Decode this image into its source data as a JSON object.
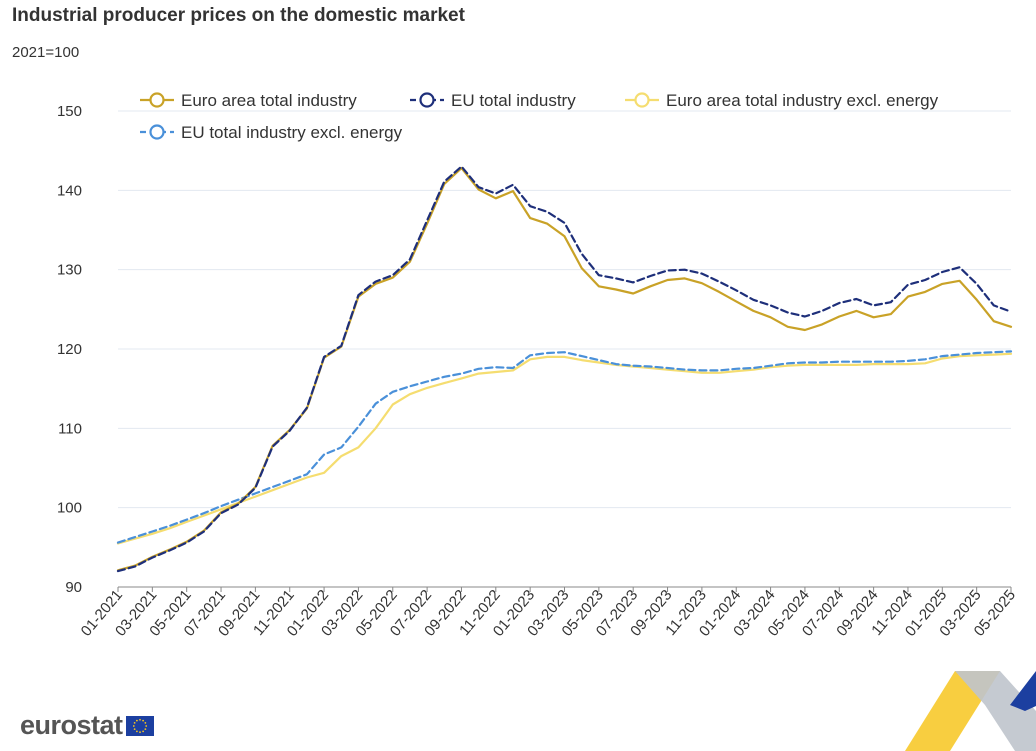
{
  "header": {
    "title": "Industrial producer prices on the domestic market",
    "subtitle": "2021=100"
  },
  "logo": {
    "text": "eurostat",
    "flag": "eu-flag-icon"
  },
  "colors": {
    "euro_area_total": "#C9A227",
    "eu_total": "#1E2F7A",
    "euro_area_excl_energy": "#F5DD70",
    "eu_excl_energy": "#4A90D9",
    "grid": "#E3E8F0",
    "axis": "#333333",
    "accent_yellow": "#F7C51E",
    "accent_blue": "#1C3FA0"
  },
  "chart_data": {
    "type": "line",
    "title": "Industrial producer prices on the domestic market",
    "subtitle": "2021=100",
    "xlabel": "",
    "ylabel": "",
    "ylim": [
      90,
      150
    ],
    "yticks": [
      90,
      100,
      110,
      120,
      130,
      140,
      150
    ],
    "grid": true,
    "legend_position": "top",
    "xtick_labels": [
      "01-2021",
      "03-2021",
      "05-2021",
      "07-2021",
      "09-2021",
      "11-2021",
      "01-2022",
      "03-2022",
      "05-2022",
      "07-2022",
      "09-2022",
      "11-2022",
      "01-2023",
      "03-2023",
      "05-2023",
      "07-2023",
      "09-2023",
      "11-2023",
      "01-2024",
      "03-2024",
      "05-2024",
      "07-2024",
      "09-2024",
      "11-2024",
      "01-2025",
      "03-2025",
      "05-2025"
    ],
    "x": [
      "01-2021",
      "02-2021",
      "03-2021",
      "04-2021",
      "05-2021",
      "06-2021",
      "07-2021",
      "08-2021",
      "09-2021",
      "10-2021",
      "11-2021",
      "12-2021",
      "01-2022",
      "02-2022",
      "03-2022",
      "04-2022",
      "05-2022",
      "06-2022",
      "07-2022",
      "08-2022",
      "09-2022",
      "10-2022",
      "11-2022",
      "12-2022",
      "01-2023",
      "02-2023",
      "03-2023",
      "04-2023",
      "05-2023",
      "06-2023",
      "07-2023",
      "08-2023",
      "09-2023",
      "10-2023",
      "11-2023",
      "12-2023",
      "01-2024",
      "02-2024",
      "03-2024",
      "04-2024",
      "05-2024",
      "06-2024",
      "07-2024",
      "08-2024",
      "09-2024",
      "10-2024",
      "11-2024",
      "12-2024",
      "01-2025",
      "02-2025",
      "03-2025",
      "04-2025",
      "05-2025"
    ],
    "series": [
      {
        "name": "Euro area total industry",
        "key": "euro_area_total",
        "dash": "solid",
        "values": [
          92.1,
          92.7,
          93.8,
          94.7,
          95.7,
          97.1,
          99.4,
          100.5,
          102.6,
          107.8,
          109.8,
          112.5,
          118.9,
          120.3,
          126.6,
          128.2,
          129.0,
          131.0,
          135.8,
          140.8,
          142.8,
          140.1,
          139.0,
          139.9,
          136.5,
          135.8,
          134.2,
          130.2,
          127.9,
          127.5,
          127.0,
          127.9,
          128.7,
          128.9,
          128.3,
          127.2,
          126.0,
          124.8,
          124.0,
          122.8,
          122.4,
          123.1,
          124.1,
          124.8,
          124.0,
          124.4,
          126.6,
          127.2,
          128.2,
          128.6,
          126.2,
          123.5,
          122.8
        ]
      },
      {
        "name": "EU total industry",
        "key": "eu_total",
        "dash": "dashed",
        "values": [
          92.0,
          92.6,
          93.7,
          94.6,
          95.6,
          97.0,
          99.3,
          100.4,
          102.5,
          107.7,
          109.7,
          112.6,
          119.0,
          120.4,
          126.8,
          128.5,
          129.3,
          131.3,
          136.2,
          141.1,
          143.0,
          140.4,
          139.6,
          140.7,
          138.0,
          137.3,
          135.9,
          132.0,
          129.3,
          128.9,
          128.4,
          129.2,
          129.9,
          130.0,
          129.5,
          128.5,
          127.4,
          126.2,
          125.5,
          124.6,
          124.1,
          124.8,
          125.8,
          126.3,
          125.5,
          125.9,
          128.1,
          128.7,
          129.7,
          130.3,
          128.2,
          125.5,
          124.7
        ]
      },
      {
        "name": "Euro area total industry excl. energy",
        "key": "euro_area_excl_energy",
        "dash": "solid",
        "values": [
          95.5,
          96.1,
          96.7,
          97.4,
          98.2,
          99.0,
          99.8,
          100.6,
          101.4,
          102.2,
          103.0,
          103.8,
          104.4,
          106.5,
          107.6,
          110.0,
          113.0,
          114.3,
          115.1,
          115.7,
          116.3,
          116.9,
          117.1,
          117.3,
          118.7,
          119.0,
          119.0,
          118.6,
          118.3,
          118.0,
          117.8,
          117.6,
          117.4,
          117.2,
          117.0,
          117.0,
          117.2,
          117.4,
          117.7,
          117.9,
          118.0,
          118.0,
          118.0,
          118.0,
          118.1,
          118.1,
          118.1,
          118.2,
          118.8,
          119.1,
          119.2,
          119.3,
          119.4
        ]
      },
      {
        "name": "EU total industry excl. energy",
        "key": "eu_excl_energy",
        "dash": "dashed",
        "values": [
          95.6,
          96.3,
          97.0,
          97.7,
          98.5,
          99.3,
          100.2,
          101.0,
          101.8,
          102.6,
          103.4,
          104.2,
          106.7,
          107.6,
          110.2,
          113.1,
          114.6,
          115.3,
          115.9,
          116.5,
          116.9,
          117.5,
          117.7,
          117.6,
          119.2,
          119.5,
          119.6,
          119.1,
          118.6,
          118.1,
          117.9,
          117.8,
          117.6,
          117.4,
          117.3,
          117.3,
          117.5,
          117.6,
          117.9,
          118.2,
          118.3,
          118.3,
          118.4,
          118.4,
          118.4,
          118.4,
          118.5,
          118.7,
          119.1,
          119.3,
          119.5,
          119.6,
          119.7
        ]
      }
    ]
  }
}
